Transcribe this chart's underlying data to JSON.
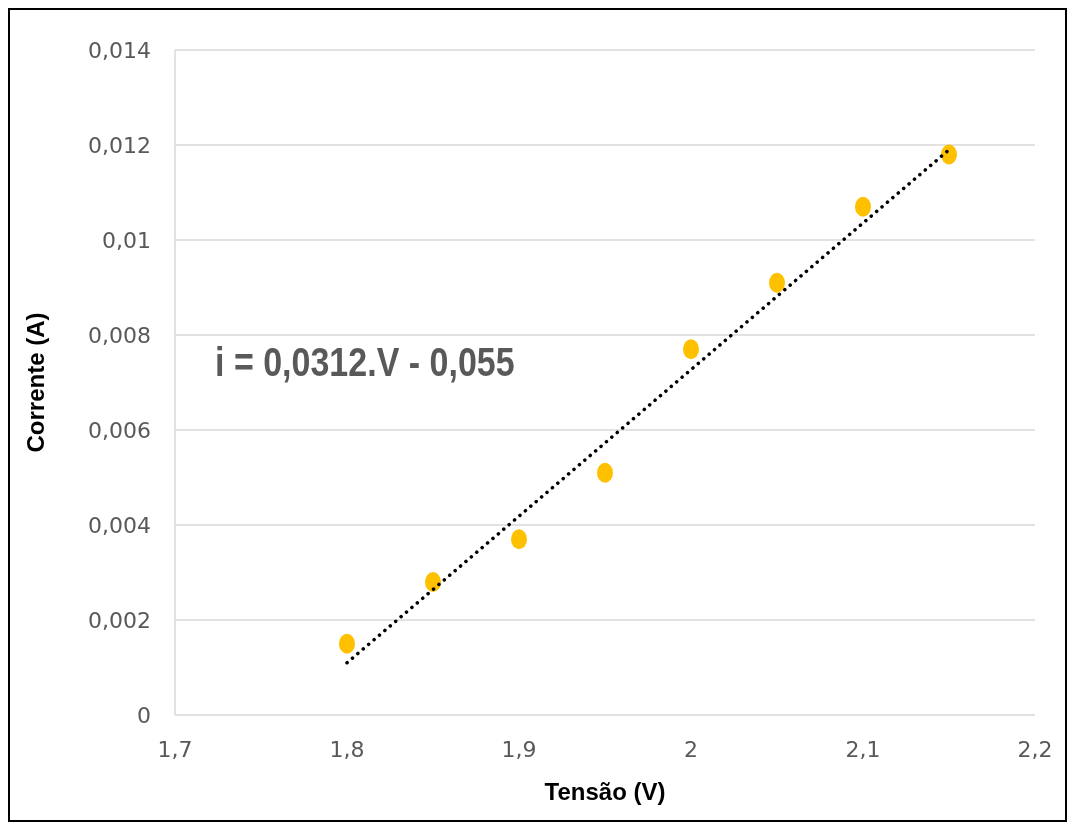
{
  "chart_data": {
    "type": "scatter",
    "xlabel": "Tensão (V)",
    "ylabel": "Corrente (A)",
    "x": [
      1.8,
      1.85,
      1.9,
      1.95,
      2.0,
      2.05,
      2.1,
      2.15
    ],
    "series": [
      {
        "type": "scatter",
        "color": "#ffc000",
        "marker": "circle",
        "values": [
          0.0015,
          0.0028,
          0.0037,
          0.0051,
          0.0077,
          0.0091,
          0.0107,
          0.0118
        ]
      },
      {
        "type": "line",
        "color": "#000000",
        "line_style": "dotted",
        "marker": "none",
        "x": [
          1.8,
          2.15
        ],
        "values": [
          0.0011,
          0.0119
        ]
      }
    ],
    "annotations": [
      "i = 0,0312.V - 0,055"
    ],
    "xlim": [
      1.7,
      2.2
    ],
    "xticks": [
      {
        "value": 1.7,
        "label": "1,7"
      },
      {
        "value": 1.8,
        "label": "1,8"
      },
      {
        "value": 1.9,
        "label": "1,9"
      },
      {
        "value": 2,
        "label": "2"
      },
      {
        "value": 2.1,
        "label": "2,1"
      },
      {
        "value": 2.2,
        "label": "2,2"
      }
    ],
    "ylim": [
      0,
      0.014
    ],
    "yticks": [
      0,
      {
        "value": 0.002,
        "label": "0,002"
      },
      {
        "value": 0.004,
        "label": "0,004"
      },
      {
        "value": 0.006,
        "label": "0,006"
      },
      {
        "value": 0.008,
        "label": "0,008"
      },
      {
        "value": 0.01,
        "label": "0,01"
      },
      {
        "value": 0.012,
        "label": "0,012"
      },
      {
        "value": 0.014,
        "label": "0,014"
      }
    ],
    "grid": "y",
    "legend": false
  }
}
